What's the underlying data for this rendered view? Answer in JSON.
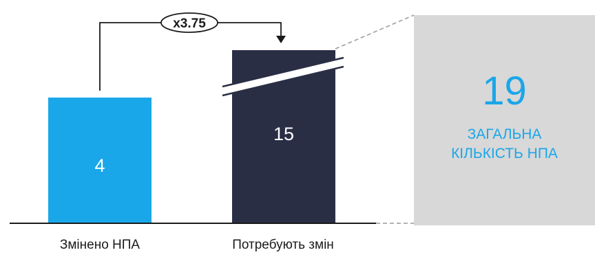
{
  "chart_data": {
    "type": "bar",
    "categories": [
      "Змінено НПА",
      "Потребують змін"
    ],
    "values": [
      4,
      15
    ],
    "data_labels": [
      "4",
      "15"
    ],
    "axis_break_on": "Потребують змін",
    "colors": [
      "#1aa7ea",
      "#2a2e45"
    ],
    "annotation": {
      "text": "x3.75",
      "from": "Змінено НПА",
      "to": "Потребують змін"
    },
    "total": {
      "value": "19",
      "label_lines": [
        "ЗАГАЛЬНА",
        "КІЛЬКІСТЬ НПА"
      ],
      "color": "#1aa6e8"
    }
  }
}
